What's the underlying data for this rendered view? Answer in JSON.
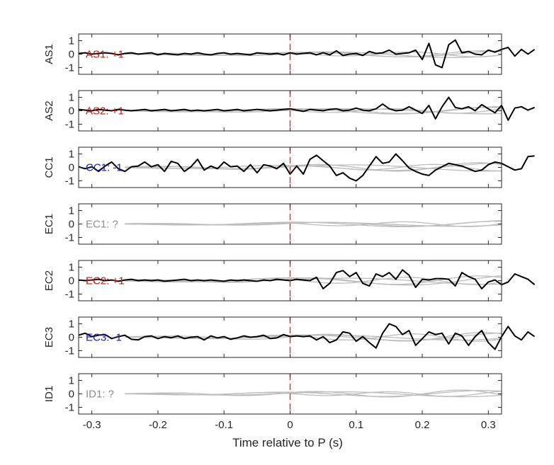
{
  "colors": {
    "black_trace": "#000000",
    "gray_trace": "#bdbdbd",
    "p_marker": "#e3262a",
    "positive": "#b31b1b",
    "negative": "#1a1aa6",
    "unknown": "#8c8c8c"
  },
  "chart_data": {
    "type": "line",
    "xlabel": "Time relative to P (s)",
    "xlim": [
      -0.32,
      0.32
    ],
    "xticks": [
      -0.3,
      -0.2,
      -0.1,
      0,
      0.1,
      0.2,
      0.3
    ],
    "xtick_labels": [
      "-0.3",
      "-0.2",
      "-0.1",
      "0",
      "0.1",
      "0.2",
      "0.3"
    ],
    "ylim": [
      -1.5,
      1.5
    ],
    "yticks": [
      1,
      0,
      -1
    ],
    "ytick_labels": [
      "1",
      "0",
      "-1"
    ],
    "p_marker_time": 0,
    "gray_x_start": -0.25,
    "panels": [
      {
        "station": "AS1",
        "annotation": "AS1: +1",
        "polarity": "positive",
        "black_x0": -0.32,
        "black_dx": 0.01,
        "black": [
          0.05,
          0.1,
          0,
          0.05,
          0.1,
          0.05,
          -0.05,
          0.05,
          0.1,
          0,
          0.05,
          0.1,
          -0.05,
          0.05,
          0,
          -0.05,
          0.05,
          0,
          0.1,
          0,
          -0.05,
          0.05,
          0.1,
          0,
          0.05,
          0,
          -0.05,
          0.1,
          0.05,
          0,
          0.05,
          -0.05,
          0.1,
          0,
          0.05,
          0.1,
          -0.05,
          0.1,
          -0.05,
          0.25,
          -0.1,
          0,
          0.05,
          -0.1,
          0.2,
          0.05,
          0.1,
          0.3,
          0,
          0.05,
          0.1,
          0.3,
          -0.4,
          0.8,
          -0.8,
          -1.0,
          0.7,
          1.05,
          0.1,
          0.2,
          0,
          -0.05,
          0.3,
          0.15,
          0.35,
          0.5,
          -0.15,
          0.35,
          0,
          0.35
        ],
        "gray": [
          {
            "amp": 0.25,
            "freq": 4.2,
            "phase": 0.3,
            "env": 0.9
          },
          {
            "amp": 0.25,
            "freq": 3.1,
            "phase": 1.4,
            "env": 0.9
          },
          {
            "amp": 0.2,
            "freq": 5.0,
            "phase": 2.2,
            "env": 0.9
          },
          {
            "amp": 0.3,
            "freq": 2.6,
            "phase": 0.8,
            "env": 0.8
          }
        ]
      },
      {
        "station": "AS2",
        "annotation": "AS2: +1",
        "polarity": "positive",
        "black_x0": -0.32,
        "black_dx": 0.01,
        "black": [
          0.1,
          0.05,
          0,
          0.1,
          0.05,
          0,
          0.1,
          0.05,
          0,
          0.05,
          0.1,
          0,
          0.05,
          0.1,
          0,
          0.05,
          0.1,
          0,
          0.05,
          0,
          0.05,
          0.1,
          0,
          0.05,
          0.1,
          0,
          0.05,
          0.1,
          0.05,
          0,
          0.05,
          0.1,
          0.15,
          0.05,
          -0.05,
          0.1,
          0.05,
          0,
          0.1,
          0.15,
          0,
          0.05,
          0.2,
          0.05,
          0,
          0.15,
          0.5,
          0.15,
          0,
          0.05,
          0.3,
          0.05,
          -0.2,
          0.4,
          -0.6,
          0.3,
          1.0,
          0.25,
          0.15,
          0.3,
          0,
          0.45,
          0.15,
          -0.15,
          0.4,
          -0.7,
          0.2,
          0.3,
          0.05,
          0.25
        ],
        "gray": [
          {
            "amp": 0.25,
            "freq": 4.0,
            "phase": 0.5,
            "env": 0.9
          },
          {
            "amp": 0.3,
            "freq": 3.0,
            "phase": 1.8,
            "env": 0.9
          },
          {
            "amp": 0.2,
            "freq": 5.2,
            "phase": 2.8,
            "env": 0.9
          },
          {
            "amp": 0.25,
            "freq": 2.5,
            "phase": 0.2,
            "env": 0.8
          }
        ]
      },
      {
        "station": "CC1",
        "annotation": "CC1: -1",
        "polarity": "negative",
        "black_x0": -0.32,
        "black_dx": 0.01,
        "black": [
          0.05,
          -0.1,
          0.05,
          -0.3,
          0.1,
          0.4,
          -0.1,
          -0.3,
          0.05,
          0.1,
          0.4,
          0.05,
          0.2,
          -0.3,
          0.45,
          0.3,
          -0.3,
          0.05,
          0.6,
          -0.2,
          0.1,
          -0.1,
          0.4,
          0.05,
          0.1,
          -0.3,
          0.2,
          -0.4,
          0.2,
          0.1,
          -0.1,
          0.3,
          -0.5,
          0.1,
          -0.5,
          0.6,
          0.9,
          0.5,
          0.1,
          -0.6,
          -0.4,
          -0.8,
          -1.0,
          -0.6,
          0.1,
          0.8,
          0.3,
          0.4,
          1.0,
          0.5,
          -0.05,
          -0.3,
          -0.5,
          -0.6,
          -0.2,
          0.05,
          0.3,
          0.2,
          0.1,
          -0.1,
          -0.3,
          -0.2,
          0.2,
          0.4,
          0.3,
          0.05,
          -0.2,
          -0.1,
          0.8,
          0.85
        ],
        "gray": [
          {
            "amp": 0.35,
            "freq": 4.1,
            "phase": 0.6,
            "env": 0.9
          },
          {
            "amp": 0.3,
            "freq": 3.0,
            "phase": 2.0,
            "env": 0.9
          },
          {
            "amp": 0.25,
            "freq": 5.0,
            "phase": 1.1,
            "env": 0.9
          },
          {
            "amp": 0.3,
            "freq": 2.4,
            "phase": 0.3,
            "env": 0.8
          }
        ]
      },
      {
        "station": "EC1",
        "annotation": "EC1: ?",
        "polarity": "unknown",
        "black_x0": -0.32,
        "black_dx": 0.01,
        "black": [],
        "gray": [
          {
            "amp": 0.2,
            "freq": 3.8,
            "phase": 0.4,
            "env": 0.9
          },
          {
            "amp": 0.25,
            "freq": 3.0,
            "phase": 1.6,
            "env": 0.9
          },
          {
            "amp": 0.2,
            "freq": 5.1,
            "phase": 2.4,
            "env": 0.9
          },
          {
            "amp": 0.2,
            "freq": 2.5,
            "phase": 0.9,
            "env": 0.8
          }
        ]
      },
      {
        "station": "EC2",
        "annotation": "EC2: +1",
        "polarity": "positive",
        "black_x0": -0.32,
        "black_dx": 0.01,
        "black": [
          0.05,
          0,
          0.05,
          0.1,
          0,
          0.05,
          -0.05,
          0.05,
          0.1,
          0,
          0.05,
          0,
          0.05,
          -0.05,
          0,
          0.05,
          0.1,
          0,
          0.05,
          0,
          0.05,
          0,
          -0.05,
          0.05,
          0,
          0.05,
          0,
          -0.05,
          0.05,
          0,
          0.1,
          0.05,
          0,
          0.1,
          0.05,
          0,
          0.25,
          -0.6,
          -0.2,
          0.6,
          0.75,
          0.3,
          0.6,
          -0.2,
          -0.4,
          0.5,
          0.3,
          0.6,
          0.1,
          0.8,
          0.4,
          -0.5,
          0.1,
          0.05,
          0.15,
          0.15,
          0.1,
          -0.4,
          0.6,
          0.3,
          0.1,
          -0.6,
          -0.1,
          0.05,
          -0.3,
          -0.1,
          0.5,
          0.3,
          0.1,
          -0.3
        ],
        "gray": [
          {
            "amp": 0.35,
            "freq": 3.9,
            "phase": 0.9,
            "env": 0.9
          },
          {
            "amp": 0.4,
            "freq": 2.8,
            "phase": 1.7,
            "env": 0.9
          },
          {
            "amp": 0.3,
            "freq": 4.8,
            "phase": 2.6,
            "env": 0.9
          },
          {
            "amp": 0.3,
            "freq": 2.3,
            "phase": 0.5,
            "env": 0.8
          }
        ]
      },
      {
        "station": "EC3",
        "annotation": "EC3: -1",
        "polarity": "negative",
        "black_x0": -0.32,
        "black_dx": 0.01,
        "black": [
          0.15,
          0.3,
          0.05,
          0.15,
          0.2,
          -0.1,
          0.05,
          0.15,
          -0.15,
          -0.2,
          0.05,
          0.1,
          -0.1,
          0.05,
          -0.05,
          0.1,
          -0.1,
          0,
          0.05,
          -0.2,
          0.1,
          -0.05,
          0.05,
          -0.15,
          -0.05,
          0.1,
          0,
          0.05,
          0.15,
          -0.1,
          -0.05,
          0.2,
          0.05,
          0.1,
          0.05,
          0.1,
          -0.2,
          0.05,
          -0.4,
          -0.2,
          0.4,
          0.3,
          -0.3,
          0.05,
          -0.4,
          -0.8,
          0.3,
          1.0,
          0.8,
          0.2,
          0.5,
          -0.6,
          -0.1,
          0.4,
          0.2,
          0.3,
          -0.5,
          0.3,
          0.1,
          -0.6,
          0.05,
          0.5,
          -0.4,
          -0.9,
          0.05,
          0.8,
          0.1,
          -0.2,
          0.4,
          0.05
        ],
        "gray": [
          {
            "amp": 0.35,
            "freq": 4.2,
            "phase": 0.2,
            "env": 0.9
          },
          {
            "amp": 0.3,
            "freq": 3.2,
            "phase": 1.3,
            "env": 0.9
          },
          {
            "amp": 0.3,
            "freq": 5.0,
            "phase": 2.1,
            "env": 0.9
          },
          {
            "amp": 0.25,
            "freq": 2.6,
            "phase": 0.7,
            "env": 0.8
          }
        ]
      },
      {
        "station": "ID1",
        "annotation": "ID1: ?",
        "polarity": "unknown",
        "black_x0": -0.32,
        "black_dx": 0.01,
        "black": [],
        "gray": [
          {
            "amp": 0.3,
            "freq": 4.5,
            "phase": 0.6,
            "env": 0.9
          },
          {
            "amp": 0.25,
            "freq": 3.3,
            "phase": 1.9,
            "env": 0.9
          },
          {
            "amp": 0.2,
            "freq": 5.4,
            "phase": 2.9,
            "env": 0.9
          },
          {
            "amp": 0.25,
            "freq": 2.7,
            "phase": 0.4,
            "env": 0.8
          }
        ]
      }
    ]
  }
}
